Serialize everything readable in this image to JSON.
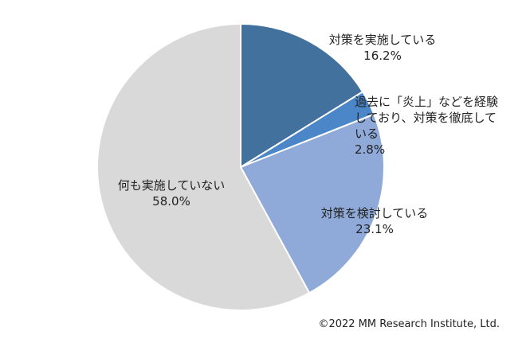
{
  "chart_data": {
    "type": "pie",
    "categories": [
      "対策を実施している",
      "過去に「炎上」などを経験しており、対策を徹底している",
      "対策を検討している",
      "何も実施していない"
    ],
    "values": [
      16.2,
      2.8,
      23.1,
      58.0
    ],
    "value_labels": [
      "16.2%",
      "2.8%",
      "23.1%",
      "58.0%"
    ],
    "colors": [
      "#41719c",
      "#4a86c8",
      "#8faad8",
      "#d9d9d9"
    ],
    "source": "©2022 MM Research Institute, Ltd."
  }
}
